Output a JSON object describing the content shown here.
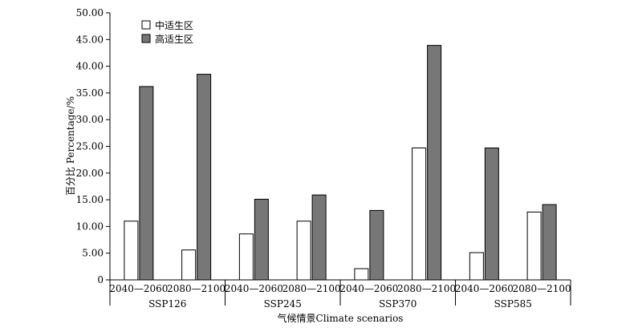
{
  "chart_data": {
    "type": "bar",
    "ylabel": "百分比 Percentage/%",
    "xlabel": "气候情景Climate scenarios",
    "ylim": [
      0,
      50
    ],
    "ytick_step": 5,
    "ytick_labels": [
      "0",
      "5.00",
      "10.00",
      "15.00",
      "20.00",
      "25.00",
      "30.00",
      "35.00",
      "40.00",
      "45.00",
      "50.00"
    ],
    "groups": [
      "SSP126",
      "SSP245",
      "SSP370",
      "SSP585"
    ],
    "periods": [
      "2040—2060",
      "2080—2100"
    ],
    "legend_position": "top-left",
    "grid": false,
    "series": [
      {
        "name": "中适生区",
        "color": "#ffffff",
        "values": [
          11.0,
          5.6,
          8.6,
          11.0,
          2.1,
          24.7,
          5.1,
          12.7
        ]
      },
      {
        "name": "高适生区",
        "color": "#777777",
        "values": [
          36.2,
          38.5,
          15.1,
          15.9,
          13.0,
          43.9,
          24.7,
          14.1
        ]
      }
    ]
  }
}
